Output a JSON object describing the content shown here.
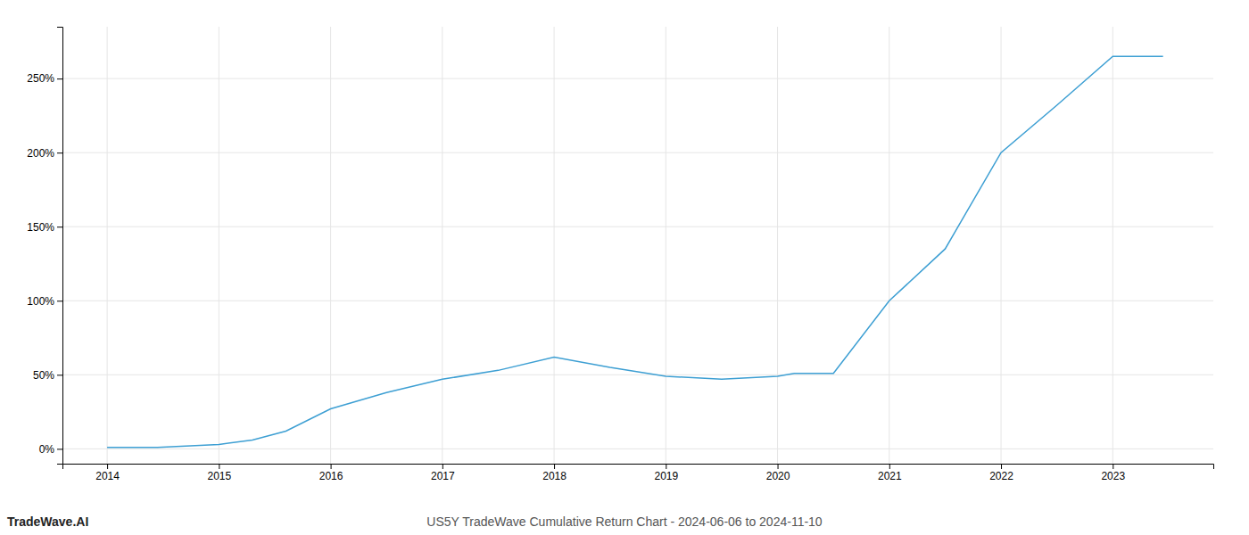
{
  "chart_data": {
    "type": "line",
    "title": "US5Y TradeWave Cumulative Return Chart - 2024-06-06 to 2024-11-10",
    "annotations": [
      "TradeWave.AI"
    ],
    "x": [
      2014.0,
      2014.45,
      2015.0,
      2015.3,
      2015.6,
      2016.0,
      2016.5,
      2017.0,
      2017.5,
      2018.0,
      2018.5,
      2019.0,
      2019.5,
      2020.0,
      2020.15,
      2020.5,
      2021.0,
      2021.5,
      2022.0,
      2022.5,
      2023.0,
      2023.45
    ],
    "values": [
      1,
      1,
      3,
      6,
      12,
      27,
      38,
      47,
      53,
      62,
      55,
      49,
      47,
      49,
      51,
      51,
      100,
      135,
      200,
      232,
      265,
      265
    ],
    "color": "#3d9fd3",
    "xlim": [
      2013.6,
      2023.9
    ],
    "ylim": [
      -10,
      285
    ],
    "xticks": [
      2014,
      2015,
      2016,
      2017,
      2018,
      2019,
      2020,
      2021,
      2022,
      2023
    ],
    "yticks": [
      {
        "value": 0,
        "label": "0%"
      },
      {
        "value": 50,
        "label": "50%"
      },
      {
        "value": 100,
        "label": "100%"
      },
      {
        "value": 150,
        "label": "150%"
      },
      {
        "value": 200,
        "label": "200%"
      },
      {
        "value": 250,
        "label": "250%"
      }
    ],
    "grid": true
  }
}
